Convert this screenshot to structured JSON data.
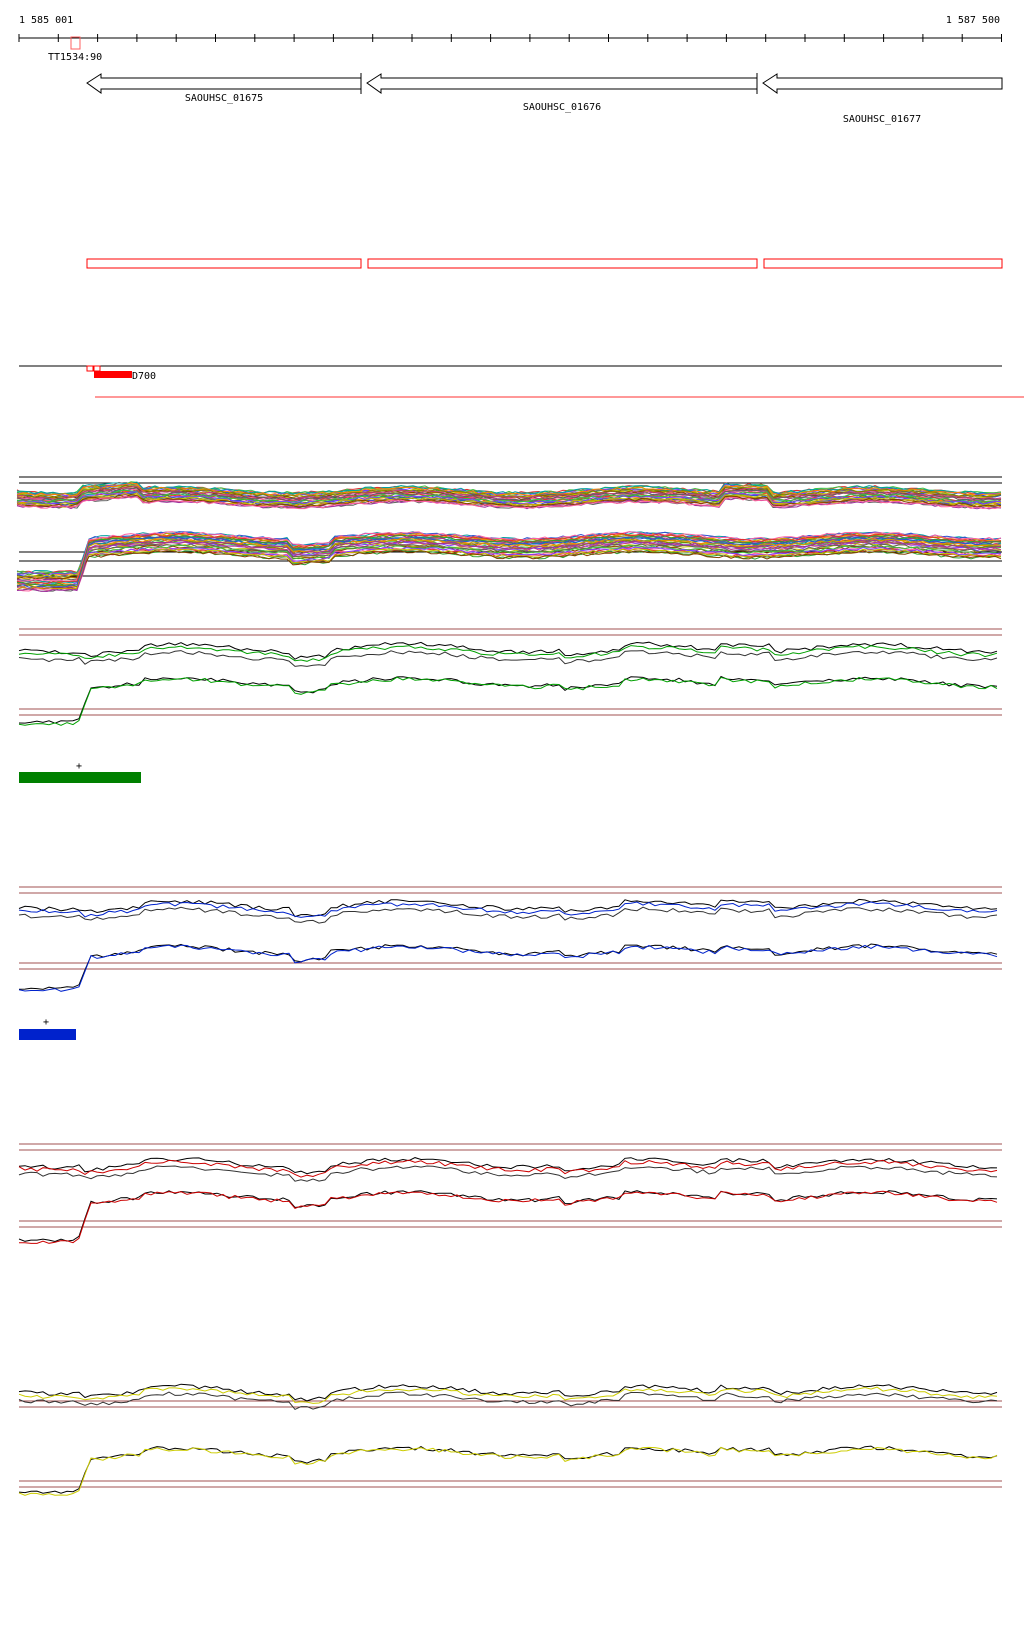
{
  "ruler": {
    "start_label": "1 585 001",
    "end_label": "1 587 500"
  },
  "terminator": {
    "label": "TT1534:90"
  },
  "genes": [
    {
      "label": "SAOUHSC_01675",
      "strand": "-"
    },
    {
      "label": "SAOUHSC_01676",
      "strand": "-"
    },
    {
      "label": "SAOUHSC_01677",
      "strand": "-"
    }
  ],
  "feature": {
    "label": "D700",
    "color": "#ff0000"
  },
  "panels": [
    {
      "name": "all-conditions",
      "color": "multi"
    },
    {
      "name": "green-condition",
      "color": "#008000",
      "mark": "+"
    },
    {
      "name": "blue-condition",
      "color": "#0022cc",
      "mark": "+"
    },
    {
      "name": "red-condition",
      "color": "#cc0000"
    },
    {
      "name": "yellow-condition",
      "color": "#cccc00"
    }
  ],
  "colors": {
    "gene_box": "#ff0000",
    "ref_line": "#a05050",
    "line": "#000000"
  }
}
